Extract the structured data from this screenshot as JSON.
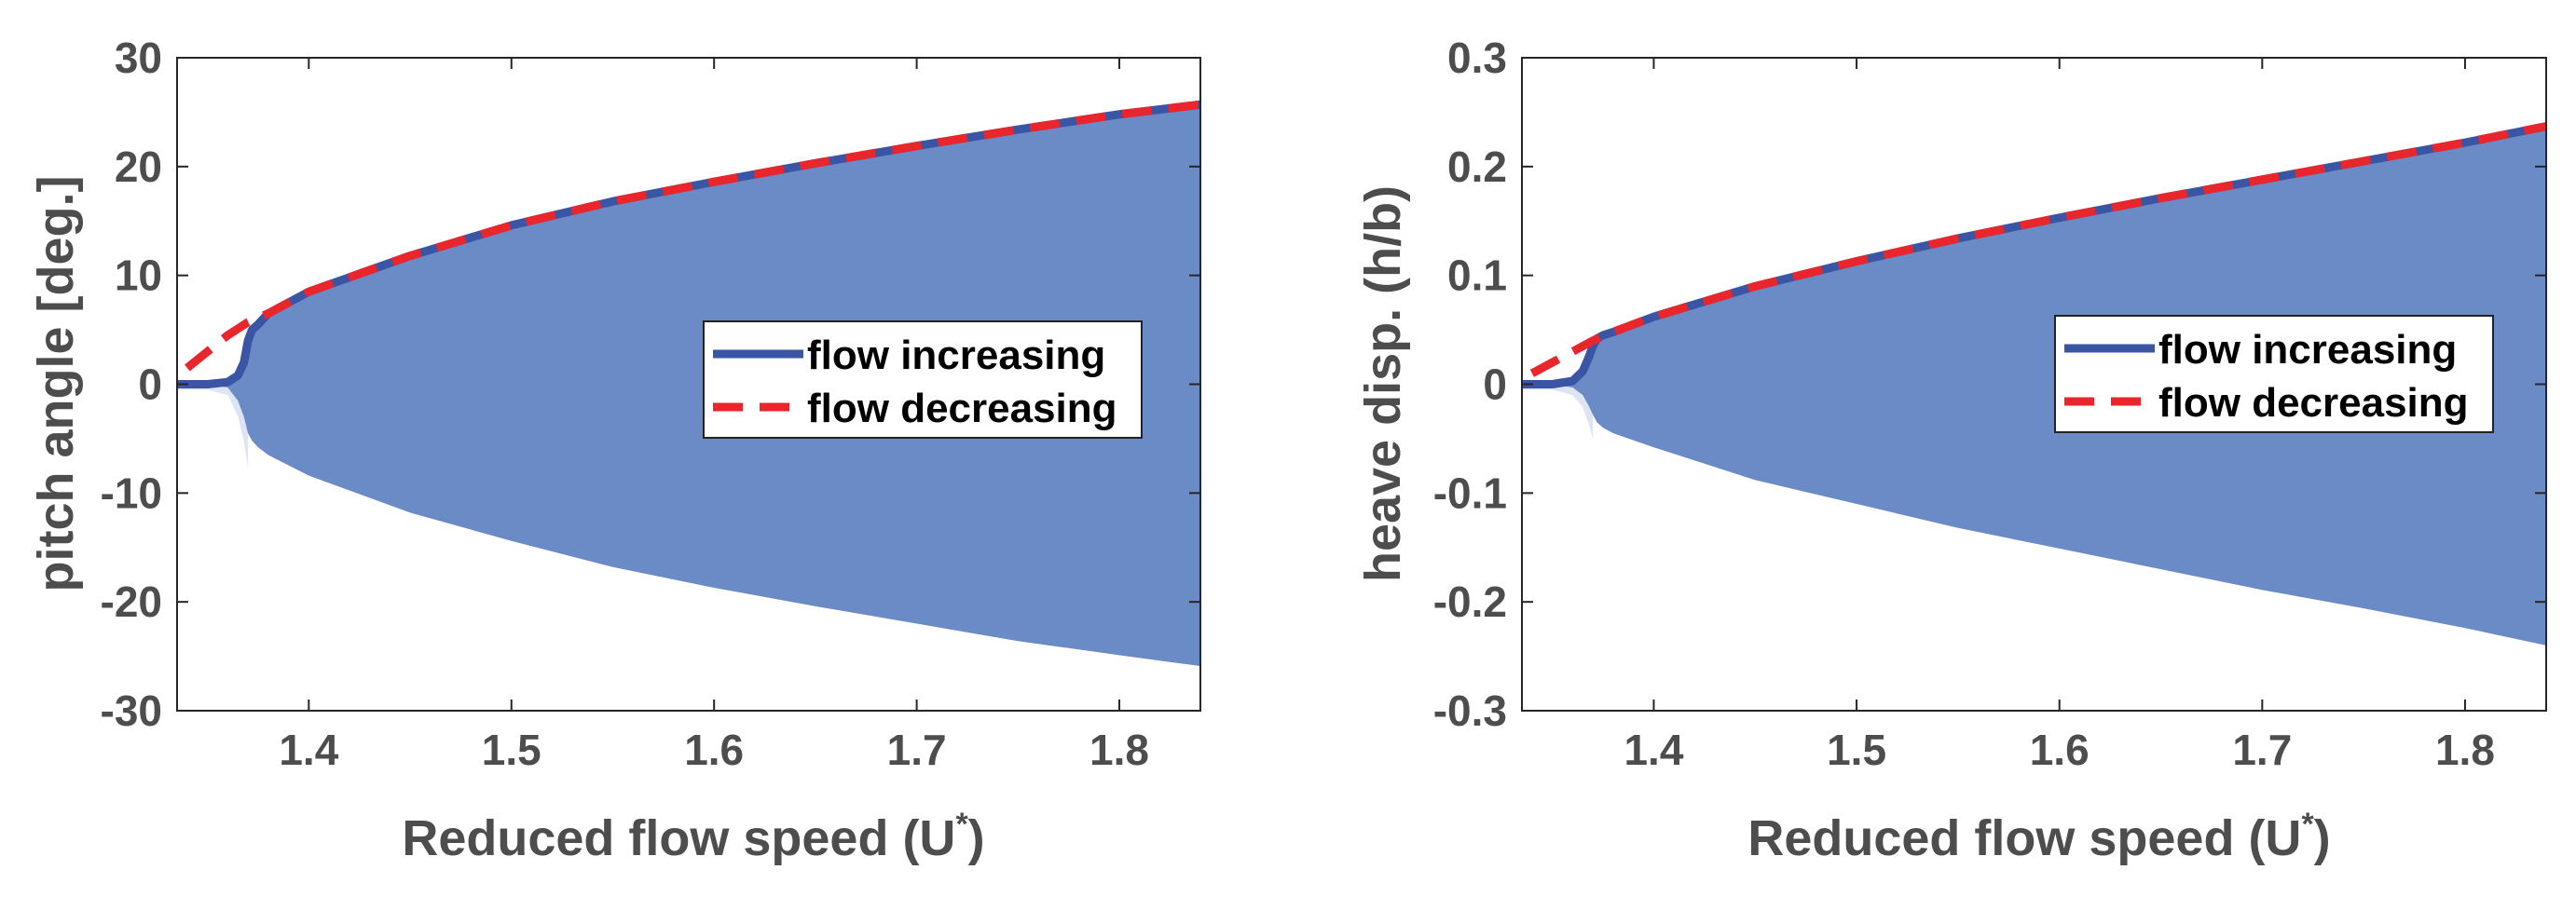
{
  "chart_data": [
    {
      "type": "line",
      "xlabel": "Reduced flow speed (U",
      "xlabel_sup": "*",
      "xlabel_close": ")",
      "ylabel": "pitch angle [deg.]",
      "xlim": [
        1.335,
        1.84
      ],
      "ylim": [
        -30,
        30
      ],
      "xticks": [
        1.4,
        1.5,
        1.6,
        1.7,
        1.8
      ],
      "xtick_labels": [
        "1.4",
        "1.5",
        "1.6",
        "1.7",
        "1.8"
      ],
      "yticks": [
        30,
        20,
        10,
        0,
        -10,
        -20,
        -30
      ],
      "ytick_labels": [
        "30",
        "20",
        "10",
        "0",
        "-10",
        "-20",
        "-30"
      ],
      "grid": false,
      "legend_position": "middle-right",
      "series": [
        {
          "name": "flow increasing",
          "style": "solid",
          "color": "#3a55a4",
          "x": [
            1.335,
            1.35,
            1.36,
            1.365,
            1.368,
            1.37,
            1.372,
            1.375,
            1.38,
            1.4,
            1.45,
            1.5,
            1.55,
            1.6,
            1.65,
            1.7,
            1.75,
            1.8,
            1.84
          ],
          "values": [
            0,
            0,
            0.2,
            0.8,
            2.0,
            4.0,
            5.0,
            5.5,
            6.5,
            8.5,
            11.8,
            14.6,
            16.8,
            18.6,
            20.3,
            21.9,
            23.4,
            24.8,
            25.7
          ]
        },
        {
          "name": "flow decreasing",
          "style": "dashed",
          "color": "#e8262b",
          "x": [
            1.34,
            1.35,
            1.36,
            1.37,
            1.38,
            1.4,
            1.45,
            1.5,
            1.55,
            1.6,
            1.65,
            1.7,
            1.75,
            1.8,
            1.84
          ],
          "values": [
            1.5,
            3.0,
            4.5,
            5.7,
            6.5,
            8.5,
            11.8,
            14.6,
            16.8,
            18.6,
            20.3,
            21.9,
            23.4,
            24.8,
            25.7
          ]
        }
      ],
      "band": {
        "color": "#6a8bc6",
        "light_color": "#dde4f4",
        "x": [
          1.335,
          1.35,
          1.36,
          1.365,
          1.368,
          1.37,
          1.372,
          1.375,
          1.38,
          1.4,
          1.45,
          1.5,
          1.55,
          1.6,
          1.65,
          1.7,
          1.75,
          1.8,
          1.84
        ],
        "upper": [
          0,
          0,
          0.2,
          0.8,
          2.0,
          4.0,
          5.0,
          5.5,
          6.5,
          8.5,
          11.8,
          14.6,
          16.8,
          18.6,
          20.3,
          21.9,
          23.4,
          24.8,
          25.7
        ],
        "lower": [
          0,
          0,
          -0.3,
          -1.5,
          -3.0,
          -4.5,
          -5.2,
          -5.8,
          -6.5,
          -8.4,
          -11.8,
          -14.4,
          -16.8,
          -18.7,
          -20.4,
          -22.0,
          -23.6,
          -24.9,
          -25.9
        ]
      }
    },
    {
      "type": "line",
      "xlabel": "Reduced flow speed (U",
      "xlabel_sup": "*",
      "xlabel_close": ")",
      "ylabel": "heave disp. (h/b)",
      "xlim": [
        1.335,
        1.84
      ],
      "ylim": [
        -0.3,
        0.3
      ],
      "xticks": [
        1.4,
        1.5,
        1.6,
        1.7,
        1.8
      ],
      "xtick_labels": [
        "1.4",
        "1.5",
        "1.6",
        "1.7",
        "1.8"
      ],
      "yticks": [
        0.3,
        0.2,
        0.1,
        0,
        -0.1,
        -0.2,
        -0.3
      ],
      "ytick_labels": [
        "0.3",
        "0.2",
        "0.1",
        "0",
        "-0.1",
        "-0.2",
        "-0.3"
      ],
      "grid": false,
      "legend_position": "middle-right",
      "series": [
        {
          "name": "flow increasing",
          "style": "solid",
          "color": "#3a55a4",
          "x": [
            1.335,
            1.35,
            1.36,
            1.365,
            1.368,
            1.37,
            1.372,
            1.375,
            1.38,
            1.4,
            1.45,
            1.5,
            1.55,
            1.6,
            1.65,
            1.7,
            1.75,
            1.8,
            1.84
          ],
          "values": [
            0,
            0,
            0.003,
            0.012,
            0.025,
            0.035,
            0.042,
            0.045,
            0.048,
            0.062,
            0.09,
            0.113,
            0.134,
            0.153,
            0.171,
            0.188,
            0.205,
            0.222,
            0.237
          ]
        },
        {
          "name": "flow decreasing",
          "style": "dashed",
          "color": "#e8262b",
          "x": [
            1.34,
            1.35,
            1.36,
            1.37,
            1.38,
            1.4,
            1.45,
            1.5,
            1.55,
            1.6,
            1.65,
            1.7,
            1.75,
            1.8,
            1.84
          ],
          "values": [
            0.01,
            0.02,
            0.03,
            0.04,
            0.048,
            0.062,
            0.09,
            0.113,
            0.134,
            0.153,
            0.171,
            0.188,
            0.205,
            0.222,
            0.237
          ]
        }
      ],
      "band": {
        "color": "#6a8bc6",
        "light_color": "#dde4f4",
        "x": [
          1.335,
          1.35,
          1.36,
          1.365,
          1.368,
          1.37,
          1.372,
          1.375,
          1.38,
          1.4,
          1.45,
          1.5,
          1.55,
          1.6,
          1.65,
          1.7,
          1.75,
          1.8,
          1.84
        ],
        "upper": [
          0,
          0,
          0.003,
          0.012,
          0.025,
          0.035,
          0.042,
          0.045,
          0.048,
          0.062,
          0.09,
          0.113,
          0.134,
          0.153,
          0.171,
          0.188,
          0.205,
          0.222,
          0.237
        ],
        "lower": [
          0,
          0,
          -0.003,
          -0.01,
          -0.02,
          -0.028,
          -0.035,
          -0.04,
          -0.045,
          -0.058,
          -0.088,
          -0.11,
          -0.132,
          -0.151,
          -0.17,
          -0.189,
          -0.206,
          -0.224,
          -0.24
        ]
      }
    }
  ]
}
